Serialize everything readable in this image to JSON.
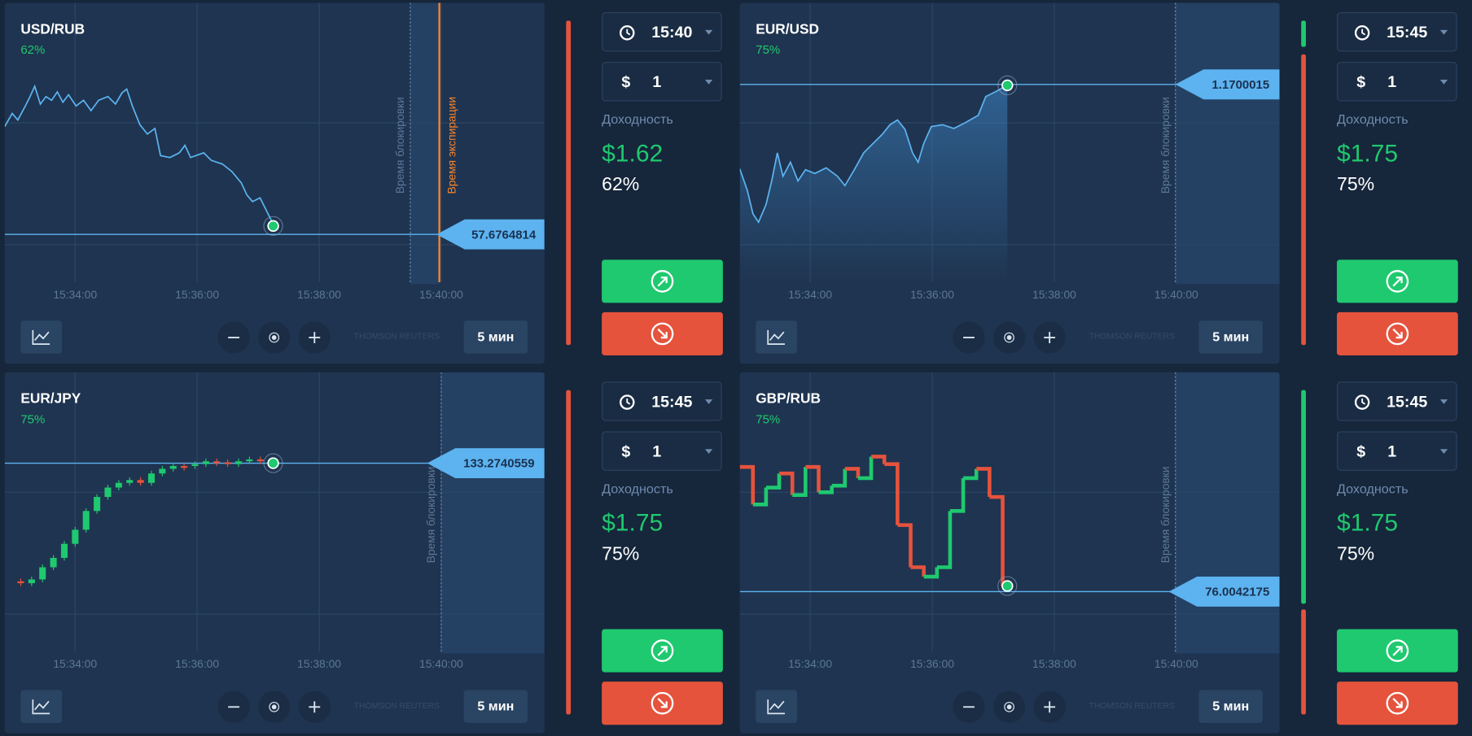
{
  "panels": [
    {
      "pair": "USD/RUB",
      "percent": "62%",
      "price": "57.6764814",
      "time_labels": [
        "15:34:00",
        "15:36:00",
        "15:38:00",
        "15:40:00"
      ],
      "lock_label": "Время блокировки",
      "expiry_label": "Время экспирации",
      "watermark": "THOMSON REUTERS",
      "period": "5 мин",
      "expiry_time": "15:40",
      "currency": "$",
      "amount": "1",
      "yield_label": "Доходность",
      "payout": "$1.62",
      "payout_percent": "62%"
    },
    {
      "pair": "EUR/USD",
      "percent": "75%",
      "price": "1.1700015",
      "time_labels": [
        "15:34:00",
        "15:36:00",
        "15:38:00",
        "15:40:00"
      ],
      "lock_label": "Время блокировки",
      "watermark": "THOMSON REUTERS",
      "period": "5 мин",
      "expiry_time": "15:45",
      "currency": "$",
      "amount": "1",
      "yield_label": "Доходность",
      "payout": "$1.75",
      "payout_percent": "75%"
    },
    {
      "pair": "EUR/JPY",
      "percent": "75%",
      "price": "133.2740559",
      "time_labels": [
        "15:34:00",
        "15:36:00",
        "15:38:00",
        "15:40:00"
      ],
      "lock_label": "Время блокировки",
      "watermark": "THOMSON REUTERS",
      "period": "5 мин",
      "expiry_time": "15:45",
      "currency": "$",
      "amount": "1",
      "yield_label": "Доходность",
      "payout": "$1.75",
      "payout_percent": "75%"
    },
    {
      "pair": "GBP/RUB",
      "percent": "75%",
      "price": "76.0042175",
      "time_labels": [
        "15:34:00",
        "15:36:00",
        "15:38:00",
        "15:40:00"
      ],
      "lock_label": "Время блокировки",
      "watermark": "THOMSON REUTERS",
      "period": "5 мин",
      "expiry_time": "15:45",
      "currency": "$",
      "amount": "1",
      "yield_label": "Доходность",
      "payout": "$1.75",
      "payout_percent": "75%"
    }
  ]
}
